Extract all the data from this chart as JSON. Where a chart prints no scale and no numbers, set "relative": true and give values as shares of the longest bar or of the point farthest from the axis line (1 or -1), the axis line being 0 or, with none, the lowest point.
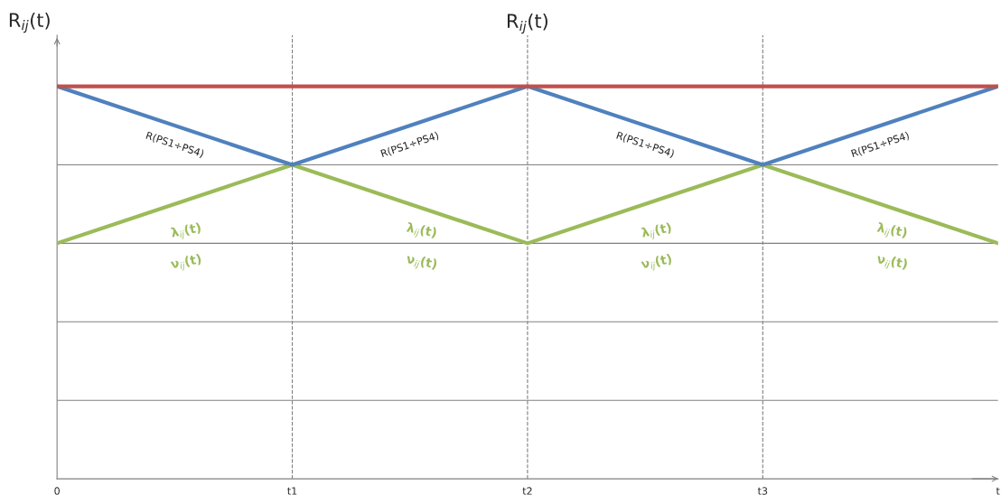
{
  "chart_data": {
    "type": "line",
    "title": "R$_{ij}$(t)",
    "ylabel": "R$_{ij}$(t)",
    "relative": true,
    "grid": true,
    "legend": false,
    "marker": "none",
    "line_style": "solid",
    "categories": [
      "0",
      "t1",
      "t2",
      "t3",
      "t"
    ],
    "series": [
      {
        "color": "#c0504d",
        "values": [
          1,
          1,
          1,
          1,
          1
        ]
      },
      {
        "color": "#4f81bd",
        "values": [
          1,
          0.8,
          1,
          0.8,
          1
        ]
      },
      {
        "color": "#9bbb59",
        "values": [
          0.6,
          0.8,
          0.6,
          0.8,
          0.6
        ]
      }
    ],
    "annotations": [
      "R(PS1÷PS4)",
      "R(PS1÷PS4)",
      "R(PS1÷PS4)",
      "R(PS1÷PS4)",
      "λ$_{ij}$(t)",
      "ν$_{ij}$(t)",
      "λ$_{ij}$(t)",
      "ν$_{ij}$(t)",
      "λ$_{ij}$(t)",
      "ν$_{ij}$(t)",
      "λ$_{ij}$(t)",
      "ν$_{ij}$(t)"
    ]
  }
}
